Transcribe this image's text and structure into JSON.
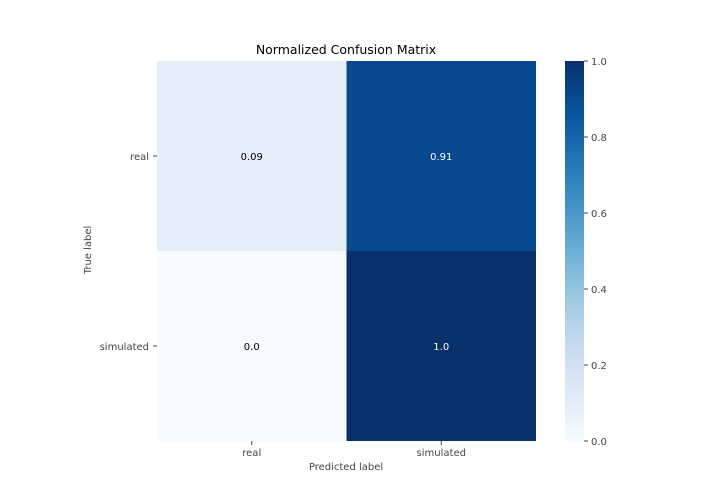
{
  "chart_data": {
    "type": "heatmap",
    "title": "Normalized Confusion Matrix",
    "xlabel": "Predicted label",
    "ylabel": "True label",
    "x_categories": [
      "real",
      "simulated"
    ],
    "y_categories": [
      "real",
      "simulated"
    ],
    "values": [
      [
        0.09,
        0.91
      ],
      [
        0.0,
        1.0
      ]
    ],
    "value_labels": [
      [
        "0.09",
        "0.91"
      ],
      [
        "0.0",
        "1.0"
      ]
    ],
    "colorbar": {
      "range": [
        0.0,
        1.0
      ],
      "ticks": [
        0.0,
        0.2,
        0.4,
        0.6,
        0.8,
        1.0
      ],
      "tick_labels": [
        "0.0",
        "0.2",
        "0.4",
        "0.6",
        "0.8",
        "1.0"
      ],
      "colormap": "Blues"
    },
    "grid": false,
    "colors": {
      "low": "#f7fbff",
      "high": "#08306b",
      "text_dark": "#000000",
      "text_light": "#ffffff",
      "axis_text": "#444444"
    }
  }
}
